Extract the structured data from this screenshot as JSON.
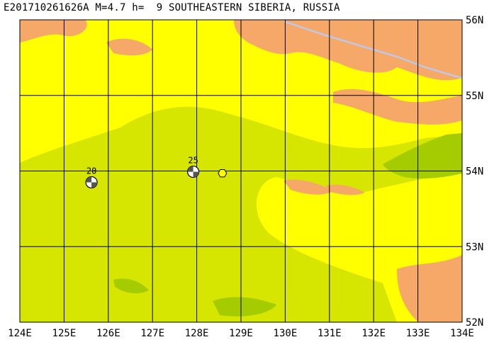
{
  "title": "E201710261626A M=4.7 h=  9 SOUTHEASTERN SIBERIA, RUSSIA",
  "colors": {
    "lowland": "#d6e600",
    "plain": "#ffff00",
    "highland": "#f6a868",
    "valley": "#a4cc00",
    "grid": "#000000",
    "border": "#c0c8e8",
    "epicenter": "#ffff00"
  },
  "map": {
    "lon_range": [
      124,
      134
    ],
    "lat_range": [
      52,
      56
    ],
    "lon_ticks": [
      "124E",
      "125E",
      "126E",
      "127E",
      "128E",
      "129E",
      "130E",
      "131E",
      "132E",
      "133E",
      "134E"
    ],
    "lat_ticks": [
      "56N",
      "55N",
      "54N",
      "53N",
      "52N"
    ]
  },
  "events": [
    {
      "label": "20",
      "lon": 125.62,
      "lat": 53.85
    },
    {
      "label": "25",
      "lon": 127.92,
      "lat": 53.99
    }
  ],
  "epicenter": {
    "lon": 128.58,
    "lat": 53.97
  },
  "icons": {
    "event": "focal-mechanism-beachball-icon",
    "epicenter": "epicenter-hexagon-icon"
  }
}
